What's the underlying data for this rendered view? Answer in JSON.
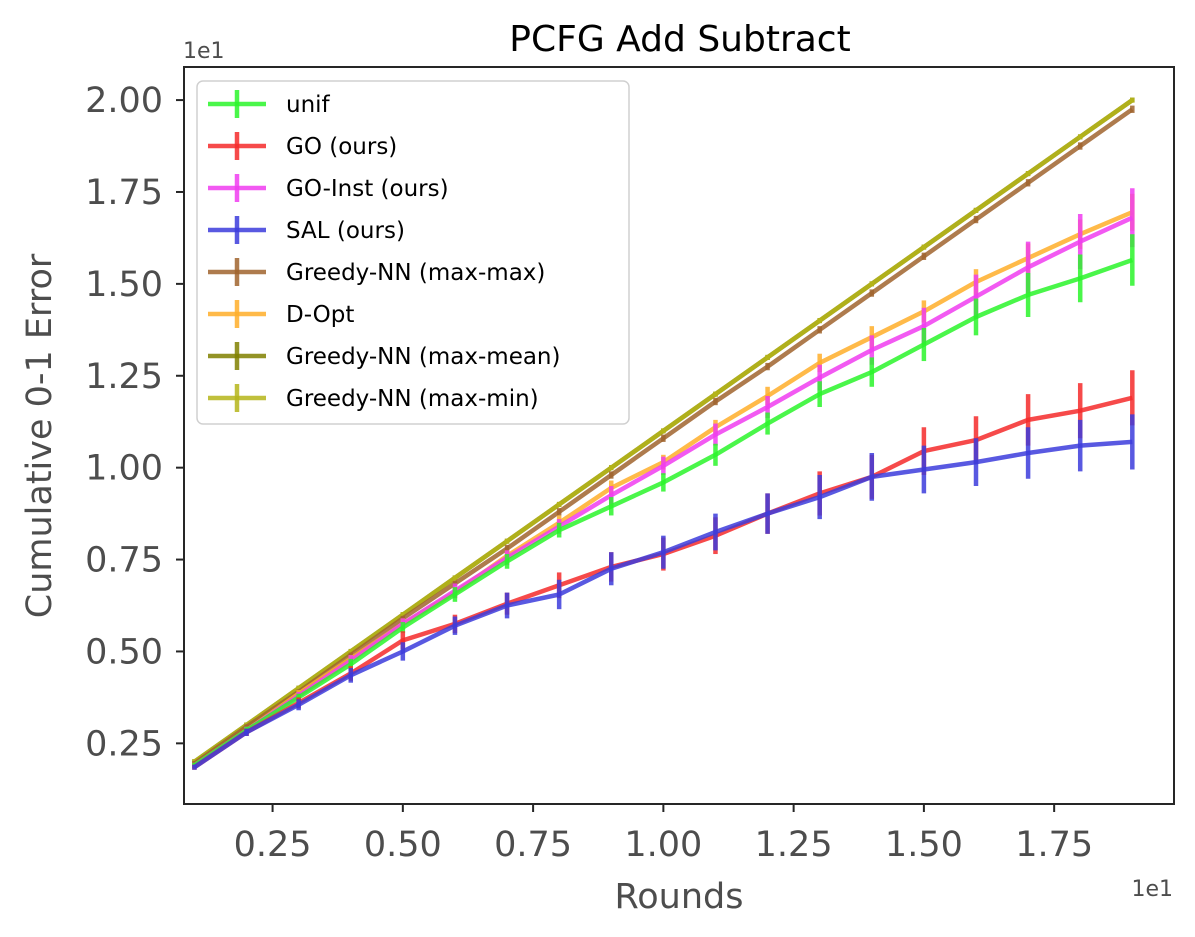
{
  "chart_data": {
    "type": "line",
    "title": "PCFG Add Subtract",
    "xlabel": "Rounds",
    "ylabel": "Cumulative 0-1 Error",
    "x_offset_label": "1e1",
    "y_offset_label": "1e1",
    "xlim": [
      0.08,
      1.98
    ],
    "ylim": [
      0.085,
      2.09
    ],
    "x_ticks": [
      0.25,
      0.5,
      0.75,
      1.0,
      1.25,
      1.5,
      1.75
    ],
    "x_tick_labels": [
      "0.25",
      "0.50",
      "0.75",
      "1.00",
      "1.25",
      "1.50",
      "1.75"
    ],
    "y_ticks": [
      0.25,
      0.5,
      0.75,
      1.0,
      1.25,
      1.5,
      1.75,
      2.0
    ],
    "y_tick_labels": [
      "0.25",
      "0.50",
      "0.75",
      "1.00",
      "1.25",
      "1.50",
      "1.75",
      "2.00"
    ],
    "grid": false,
    "legend_position": "top-left",
    "x": [
      0.1,
      0.2,
      0.3,
      0.4,
      0.5,
      0.6,
      0.7,
      0.8,
      0.9,
      1.0,
      1.1,
      1.2,
      1.3,
      1.4,
      1.5,
      1.6,
      1.7,
      1.8,
      1.9
    ],
    "series": [
      {
        "name": "Greedy-NN (max-mean)",
        "color": "#808000",
        "values": [
          0.2,
          0.3,
          0.4,
          0.5,
          0.6,
          0.7,
          0.8,
          0.9,
          1.0,
          1.1,
          1.2,
          1.3,
          1.4,
          1.5,
          1.6,
          1.7,
          1.8,
          1.9,
          2.0
        ],
        "errors": [
          0,
          0,
          0,
          0,
          0,
          0,
          0,
          0,
          0,
          0,
          0,
          0,
          0,
          0,
          0,
          0,
          0,
          0,
          0
        ]
      },
      {
        "name": "Greedy-NN (max-min)",
        "color": "#b5b51a",
        "values": [
          0.2,
          0.3,
          0.4,
          0.5,
          0.6,
          0.7,
          0.8,
          0.9,
          1.0,
          1.1,
          1.2,
          1.3,
          1.4,
          1.5,
          1.6,
          1.7,
          1.8,
          1.9,
          2.0
        ],
        "errors": [
          0,
          0,
          0,
          0,
          0,
          0,
          0,
          0,
          0,
          0,
          0,
          0,
          0,
          0,
          0,
          0,
          0,
          0,
          0
        ]
      },
      {
        "name": "Greedy-NN (max-max)",
        "color": "#a0642e",
        "values": [
          0.195,
          0.295,
          0.39,
          0.49,
          0.59,
          0.685,
          0.78,
          0.88,
          0.98,
          1.08,
          1.18,
          1.275,
          1.375,
          1.475,
          1.575,
          1.675,
          1.775,
          1.875,
          1.975
        ],
        "errors": [
          0.005,
          0.005,
          0.005,
          0.005,
          0.005,
          0.005,
          0.01,
          0.01,
          0.01,
          0.01,
          0.01,
          0.01,
          0.01,
          0.01,
          0.01,
          0.01,
          0.01,
          0.01,
          0.01
        ]
      },
      {
        "name": "D-Opt",
        "color": "#ffae29",
        "values": [
          0.19,
          0.285,
          0.385,
          0.48,
          0.575,
          0.66,
          0.76,
          0.85,
          0.945,
          1.015,
          1.11,
          1.195,
          1.285,
          1.355,
          1.425,
          1.505,
          1.57,
          1.635,
          1.695
        ],
        "errors": [
          0.005,
          0.01,
          0.01,
          0.01,
          0.015,
          0.015,
          0.015,
          0.02,
          0.02,
          0.02,
          0.02,
          0.025,
          0.025,
          0.03,
          0.03,
          0.035,
          0.04,
          0.04,
          0.05
        ]
      },
      {
        "name": "GO-Inst (ours)",
        "color": "#f03cf0",
        "values": [
          0.19,
          0.285,
          0.38,
          0.475,
          0.575,
          0.665,
          0.755,
          0.84,
          0.925,
          1.005,
          1.09,
          1.165,
          1.245,
          1.32,
          1.385,
          1.465,
          1.545,
          1.615,
          1.68
        ],
        "errors": [
          0.005,
          0.01,
          0.01,
          0.015,
          0.015,
          0.02,
          0.02,
          0.02,
          0.025,
          0.025,
          0.03,
          0.03,
          0.035,
          0.04,
          0.05,
          0.06,
          0.07,
          0.075,
          0.08
        ]
      },
      {
        "name": "unif",
        "color": "#2af52a",
        "values": [
          0.19,
          0.285,
          0.375,
          0.465,
          0.565,
          0.655,
          0.745,
          0.83,
          0.895,
          0.96,
          1.035,
          1.12,
          1.2,
          1.26,
          1.335,
          1.41,
          1.47,
          1.515,
          1.565
        ],
        "errors": [
          0.005,
          0.01,
          0.01,
          0.015,
          0.015,
          0.02,
          0.02,
          0.02,
          0.025,
          0.025,
          0.03,
          0.03,
          0.035,
          0.04,
          0.045,
          0.05,
          0.06,
          0.065,
          0.07
        ]
      },
      {
        "name": "GO (ours)",
        "color": "#f52a2a",
        "values": [
          0.185,
          0.28,
          0.36,
          0.44,
          0.53,
          0.575,
          0.63,
          0.68,
          0.73,
          0.765,
          0.815,
          0.875,
          0.93,
          0.975,
          1.045,
          1.075,
          1.13,
          1.155,
          1.19
        ],
        "errors": [
          0.005,
          0.01,
          0.015,
          0.02,
          0.025,
          0.025,
          0.03,
          0.035,
          0.04,
          0.045,
          0.05,
          0.055,
          0.06,
          0.06,
          0.065,
          0.065,
          0.07,
          0.075,
          0.075
        ]
      },
      {
        "name": "SAL (ours)",
        "color": "#3c3cdc",
        "values": [
          0.185,
          0.28,
          0.355,
          0.435,
          0.5,
          0.57,
          0.625,
          0.655,
          0.725,
          0.77,
          0.825,
          0.875,
          0.92,
          0.975,
          0.995,
          1.015,
          1.04,
          1.06,
          1.07
        ],
        "errors": [
          0.005,
          0.01,
          0.015,
          0.02,
          0.025,
          0.025,
          0.035,
          0.04,
          0.045,
          0.045,
          0.05,
          0.055,
          0.06,
          0.065,
          0.065,
          0.065,
          0.07,
          0.07,
          0.075
        ]
      }
    ],
    "legend": [
      {
        "label": "unif",
        "color": "#2af52a"
      },
      {
        "label": "GO (ours)",
        "color": "#f52a2a"
      },
      {
        "label": "GO-Inst (ours)",
        "color": "#f03cf0"
      },
      {
        "label": "SAL (ours)",
        "color": "#3c3cdc"
      },
      {
        "label": "Greedy-NN (max-max)",
        "color": "#a0642e"
      },
      {
        "label": "D-Opt",
        "color": "#ffae29"
      },
      {
        "label": "Greedy-NN (max-mean)",
        "color": "#808000"
      },
      {
        "label": "Greedy-NN (max-min)",
        "color": "#b5b51a"
      }
    ]
  }
}
